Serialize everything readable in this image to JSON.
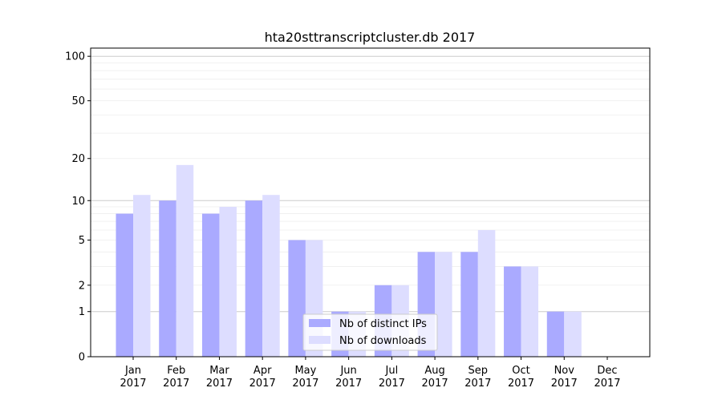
{
  "chart_data": {
    "type": "bar",
    "title": "hta20sttranscriptcluster.db 2017",
    "xlabel": "",
    "ylabel": "",
    "y_scale": "log(1+y)",
    "ylim": [
      0,
      113
    ],
    "yticks": [
      0,
      1,
      2,
      5,
      10,
      20,
      50,
      100
    ],
    "grid": true,
    "legend_position": "lower-center",
    "categories": [
      "Jan\n2017",
      "Feb\n2017",
      "Mar\n2017",
      "Apr\n2017",
      "May\n2017",
      "Jun\n2017",
      "Jul\n2017",
      "Aug\n2017",
      "Sep\n2017",
      "Oct\n2017",
      "Nov\n2017",
      "Dec\n2017"
    ],
    "series": [
      {
        "name": "Nb of distinct IPs",
        "color": "#aaaaff",
        "values": [
          8,
          10,
          8,
          10,
          5,
          1,
          2,
          4,
          4,
          3,
          1,
          0
        ]
      },
      {
        "name": "Nb of downloads",
        "color": "#ddddff",
        "values": [
          11,
          18,
          9,
          11,
          5,
          1,
          2,
          4,
          6,
          3,
          1,
          0
        ]
      }
    ]
  }
}
